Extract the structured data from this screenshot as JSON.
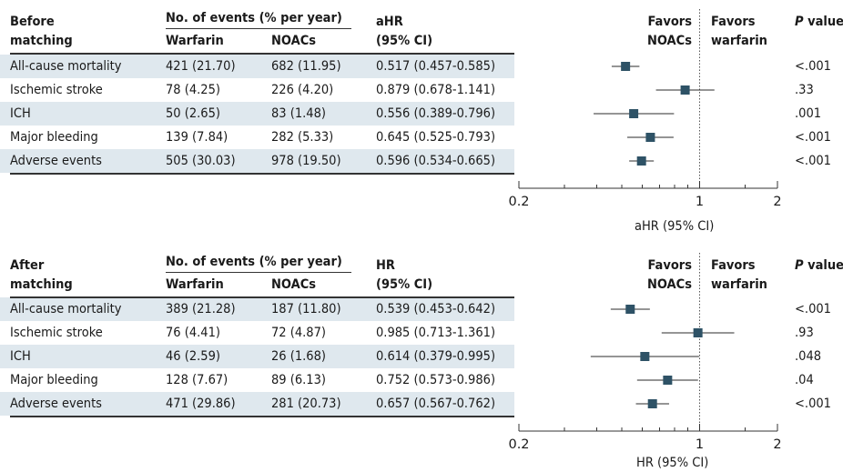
{
  "panels": [
    {
      "group_label_1": "Before",
      "group_label_2": "matching",
      "events_header": "No. of events (% per year)",
      "col_warfarin": "Warfarin",
      "col_noacs": "NOACs",
      "hr_header_1": "aHR",
      "hr_header_2": "(95% CI)",
      "favors_left_1": "Favors",
      "favors_left_2": "NOACs",
      "favors_right_1": "Favors",
      "favors_right_2": "warfarin",
      "p_header_italic": "P",
      "p_header_rest": " value",
      "axis_label": "aHR (95% CI)",
      "rows": [
        {
          "outcome": "All-cause mortality",
          "warfarin": "421 (21.70)",
          "noacs": "682 (11.95)",
          "hr_text": "0.517 (0.457-0.585)",
          "p": "<.001"
        },
        {
          "outcome": "Ischemic stroke",
          "warfarin": "78 (4.25)",
          "noacs": "226 (4.20)",
          "hr_text": "0.879 (0.678-1.141)",
          "p": ".33"
        },
        {
          "outcome": "ICH",
          "warfarin": "50 (2.65)",
          "noacs": "83 (1.48)",
          "hr_text": "0.556 (0.389-0.796)",
          "p": ".001"
        },
        {
          "outcome": "Major bleeding",
          "warfarin": "139 (7.84)",
          "noacs": "282 (5.33)",
          "hr_text": "0.645 (0.525-0.793)",
          "p": "<.001"
        },
        {
          "outcome": "Adverse events",
          "warfarin": "505 (30.03)",
          "noacs": "978 (19.50)",
          "hr_text": "0.596 (0.534-0.665)",
          "p": "<.001"
        }
      ]
    },
    {
      "group_label_1": "After",
      "group_label_2": "matching",
      "events_header": "No. of events (% per year)",
      "col_warfarin": "Warfarin",
      "col_noacs": "NOACs",
      "hr_header_1": "HR",
      "hr_header_2": "(95% CI)",
      "favors_left_1": "Favors",
      "favors_left_2": "NOACs",
      "favors_right_1": "Favors",
      "favors_right_2": "warfarin",
      "p_header_italic": "P",
      "p_header_rest": " value",
      "axis_label": "HR (95% CI)",
      "rows": [
        {
          "outcome": "All-cause mortality",
          "warfarin": "389 (21.28)",
          "noacs": "187 (11.80)",
          "hr_text": "0.539 (0.453-0.642)",
          "p": "<.001"
        },
        {
          "outcome": "Ischemic stroke",
          "warfarin": "76 (4.41)",
          "noacs": "72 (4.87)",
          "hr_text": "0.985 (0.713-1.361)",
          "p": ".93"
        },
        {
          "outcome": "ICH",
          "warfarin": "46 (2.59)",
          "noacs": "26 (1.68)",
          "hr_text": "0.614 (0.379-0.995)",
          "p": ".048"
        },
        {
          "outcome": "Major bleeding",
          "warfarin": "128 (7.67)",
          "noacs": "89 (6.13)",
          "hr_text": "0.752 (0.573-0.986)",
          "p": ".04"
        },
        {
          "outcome": "Adverse events",
          "warfarin": "471 (29.86)",
          "noacs": "281 (20.73)",
          "hr_text": "0.657 (0.567-0.762)",
          "p": "<.001"
        }
      ]
    }
  ],
  "chart_data": [
    {
      "type": "forest",
      "xscale": "log",
      "xlim": [
        0.2,
        2
      ],
      "xticks": [
        0.2,
        1,
        2
      ],
      "xtick_labels": [
        "0.2",
        "1",
        "2"
      ],
      "reference_line": 1,
      "xlabel": "aHR (95% CI)",
      "marker_color": "#2e5266",
      "categories": [
        "All-cause mortality",
        "Ischemic stroke",
        "ICH",
        "Major bleeding",
        "Adverse events"
      ],
      "estimates": [
        0.517,
        0.879,
        0.556,
        0.645,
        0.596
      ],
      "ci_lower": [
        0.457,
        0.678,
        0.389,
        0.525,
        0.534
      ],
      "ci_upper": [
        0.585,
        1.141,
        0.796,
        0.793,
        0.665
      ]
    },
    {
      "type": "forest",
      "xscale": "log",
      "xlim": [
        0.2,
        2
      ],
      "xticks": [
        0.2,
        1,
        2
      ],
      "xtick_labels": [
        "0.2",
        "1",
        "2"
      ],
      "reference_line": 1,
      "xlabel": "HR (95% CI)",
      "marker_color": "#2e5266",
      "categories": [
        "All-cause mortality",
        "Ischemic stroke",
        "ICH",
        "Major bleeding",
        "Adverse events"
      ],
      "estimates": [
        0.539,
        0.985,
        0.614,
        0.752,
        0.657
      ],
      "ci_lower": [
        0.453,
        0.713,
        0.379,
        0.573,
        0.567
      ],
      "ci_upper": [
        0.642,
        1.361,
        0.995,
        0.986,
        0.762
      ]
    }
  ]
}
